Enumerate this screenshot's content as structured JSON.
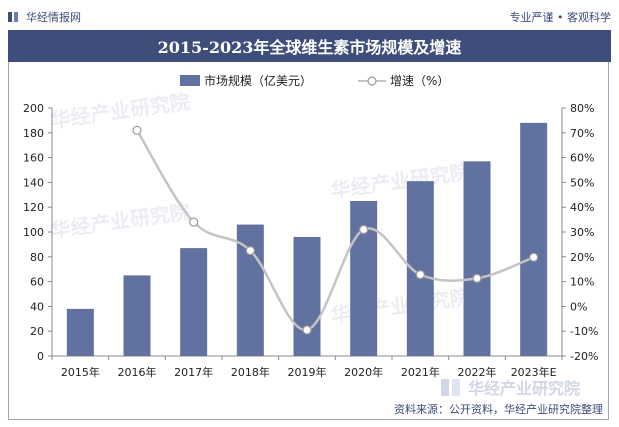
{
  "header": {
    "brand": "华经情报网",
    "motto": "专业严谨 • 客观科学"
  },
  "title": "2015-2023年全球维生素市场规模及增速",
  "legend": {
    "bar": "市场规模（亿美元）",
    "line": "增速（%）"
  },
  "source": "资料来源：公开资料，华经产业研究院整理",
  "watermark": {
    "text": "华经产业研究院",
    "url": "www.huaon.com"
  },
  "colors": {
    "bar": "#6272a0",
    "line": "#c4c4c4",
    "title_bg": "#3f4d7a"
  },
  "chart_data": {
    "type": "bar",
    "categories": [
      "2015年",
      "2016年",
      "2017年",
      "2018年",
      "2019年",
      "2020年",
      "2021年",
      "2022年",
      "2023年E"
    ],
    "series": [
      {
        "name": "市场规模（亿美元）",
        "type": "bar",
        "axis": "left",
        "values": [
          38,
          65,
          87,
          106,
          96,
          125,
          141,
          157,
          188
        ]
      },
      {
        "name": "增速（%）",
        "type": "line",
        "axis": "right",
        "values": [
          null,
          71,
          34,
          22.5,
          -9.5,
          31,
          12.8,
          11.3,
          19.8
        ]
      }
    ],
    "y_left": {
      "min": 0,
      "max": 200,
      "step": 20,
      "ticks": [
        "0",
        "20",
        "40",
        "60",
        "80",
        "100",
        "120",
        "140",
        "160",
        "180",
        "200"
      ]
    },
    "y_right": {
      "min": -20,
      "max": 80,
      "step": 10,
      "ticks": [
        "-20%",
        "-10%",
        "0%",
        "10%",
        "20%",
        "30%",
        "40%",
        "50%",
        "60%",
        "70%",
        "80%"
      ]
    },
    "title": "2015-2023年全球维生素市场规模及增速",
    "grid": false,
    "legend_position": "top"
  }
}
